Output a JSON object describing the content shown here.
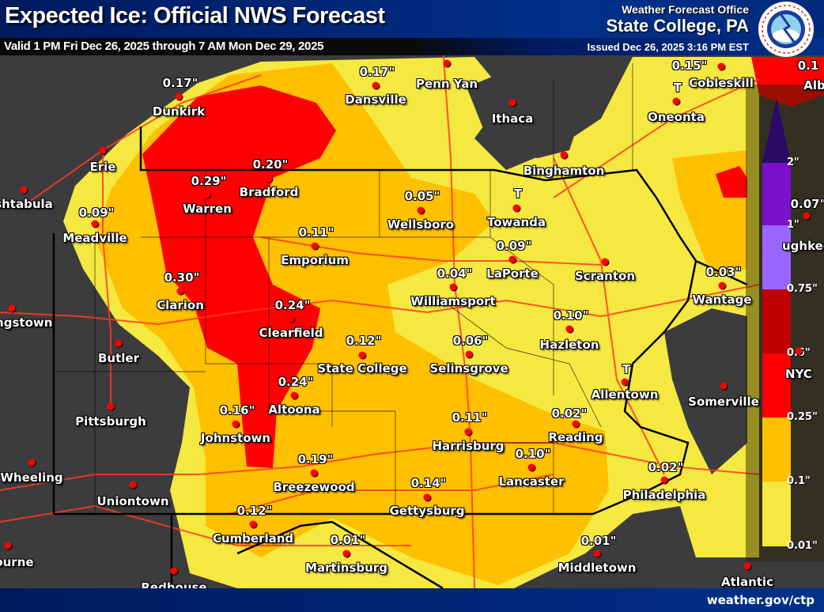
{
  "header": {
    "title": "Expected Ice: Official NWS Forecast",
    "valid": "Valid 1 PM Fri Dec 26, 2025 through 7 AM Mon Dec 29, 2025",
    "office_line": "Weather Forecast Office",
    "office": "State College, PA",
    "issued": "Issued Dec 26, 2025 3:16 PM EST",
    "logo_text": "NATIONAL WEATHER SERVICE"
  },
  "footer": {
    "url": "weather.gov/ctp"
  },
  "legend": {
    "items": [
      {
        "label": "2\"",
        "color": "#2a0a66"
      },
      {
        "label": "1\"",
        "color": "#7a10cc"
      },
      {
        "label": "0.75\"",
        "color": "#9966ff"
      },
      {
        "label": "0.5\"",
        "color": "#c00000"
      },
      {
        "label": "0.25\"",
        "color": "#ff0000"
      },
      {
        "label": "0.1\"",
        "color": "#ffc000"
      },
      {
        "label": "0.01\"",
        "color": "#f5e840"
      }
    ]
  },
  "map_colors": {
    "background": "#3c3c3e",
    "yellow": "#f5e840",
    "orange": "#ffc000",
    "red": "#ff0000",
    "roads": "#ff3b1f",
    "borders": "#000000"
  },
  "locations": [
    {
      "name": "Dunkirk",
      "value": "0.17\""
    },
    {
      "name": "Erie",
      "value": ""
    },
    {
      "name": "shtabula",
      "value": ""
    },
    {
      "name": "Meadville",
      "value": "0.09\""
    },
    {
      "name": "Warren",
      "value": "0.29\""
    },
    {
      "name": "Bradford",
      "value": "0.20\""
    },
    {
      "name": "Emporium",
      "value": "0.11\""
    },
    {
      "name": "Clarion",
      "value": "0.30\""
    },
    {
      "name": "Youngstown",
      "value": ""
    },
    {
      "name": "Butler",
      "value": ""
    },
    {
      "name": "Pittsburgh",
      "value": ""
    },
    {
      "name": "Wheeling",
      "value": ""
    },
    {
      "name": "Uniontown",
      "value": ""
    },
    {
      "name": "Johnstown",
      "value": "0.16\""
    },
    {
      "name": "Altoona",
      "value": "0.24\""
    },
    {
      "name": "Clearfield",
      "value": "0.24\""
    },
    {
      "name": "State College",
      "value": "0.12\""
    },
    {
      "name": "Breezewood",
      "value": "0.19\""
    },
    {
      "name": "Cumberland",
      "value": "0.12\""
    },
    {
      "name": "Martinsburg",
      "value": "0.01\""
    },
    {
      "name": "Gettysburg",
      "value": "0.14\""
    },
    {
      "name": "Harrisburg",
      "value": "0.11\""
    },
    {
      "name": "Lancaster",
      "value": "0.10\""
    },
    {
      "name": "Reading",
      "value": "0.02\""
    },
    {
      "name": "Allentown",
      "value": "T"
    },
    {
      "name": "Hazleton",
      "value": "0.10\""
    },
    {
      "name": "Selinsgrove",
      "value": "0.06\""
    },
    {
      "name": "Williamsport",
      "value": "0.04\""
    },
    {
      "name": "LaPorte",
      "value": "0.09\""
    },
    {
      "name": "Wellsboro",
      "value": "0.05\""
    },
    {
      "name": "Towanda",
      "value": "T"
    },
    {
      "name": "Scranton",
      "value": ""
    },
    {
      "name": "Binghamton",
      "value": ""
    },
    {
      "name": "Ithaca",
      "value": ""
    },
    {
      "name": "Penn Yan",
      "value": ""
    },
    {
      "name": "Dansville",
      "value": "0.17\""
    },
    {
      "name": "Oneonta",
      "value": "T"
    },
    {
      "name": "Cobleskill",
      "value": "0.15\""
    },
    {
      "name": "Alb",
      "value": "0.1"
    },
    {
      "name": "ughkee",
      "value": "0.07\""
    },
    {
      "name": "Wantage",
      "value": "0.03\""
    },
    {
      "name": "Somerville",
      "value": ""
    },
    {
      "name": "Philadelphia",
      "value": "0.02\""
    },
    {
      "name": "Middletown",
      "value": "0.01\""
    },
    {
      "name": "Atlantic",
      "value": ""
    },
    {
      "name": "NYC",
      "value": ""
    },
    {
      "name": "lbourne",
      "value": ""
    },
    {
      "name": "Redhouse",
      "value": ""
    }
  ]
}
